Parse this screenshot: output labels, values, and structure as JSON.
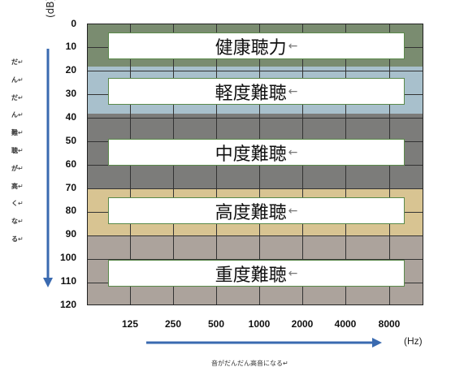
{
  "y_unit": "(dB)",
  "x_unit": "(Hz)",
  "y_ticks": [
    "0",
    "10",
    "20",
    "30",
    "40",
    "50",
    "60",
    "70",
    "80",
    "90",
    "100",
    "110",
    "120"
  ],
  "x_ticks": [
    "125",
    "250",
    "500",
    "1000",
    "2000",
    "4000",
    "8000"
  ],
  "vertical_caption": [
    "だ",
    "ん",
    "だ",
    "ん",
    "難",
    "聴",
    "が",
    "高",
    "く",
    "な",
    "る"
  ],
  "horizontal_caption": "音がだんだん高音になる",
  "levels": [
    {
      "label": "健康聴力",
      "color": "#7a8c70"
    },
    {
      "label": "軽度難聴",
      "color": "#a8c0cc"
    },
    {
      "label": "中度難聴",
      "color": "#7c7c7a"
    },
    {
      "label": "高度難聴",
      "color": "#d8c492"
    },
    {
      "label": "重度難聴",
      "color": "#aca39c"
    }
  ],
  "return_mark": "↵",
  "arrow_mark": "←",
  "axis_arrow_color": "#3a6ab0"
}
